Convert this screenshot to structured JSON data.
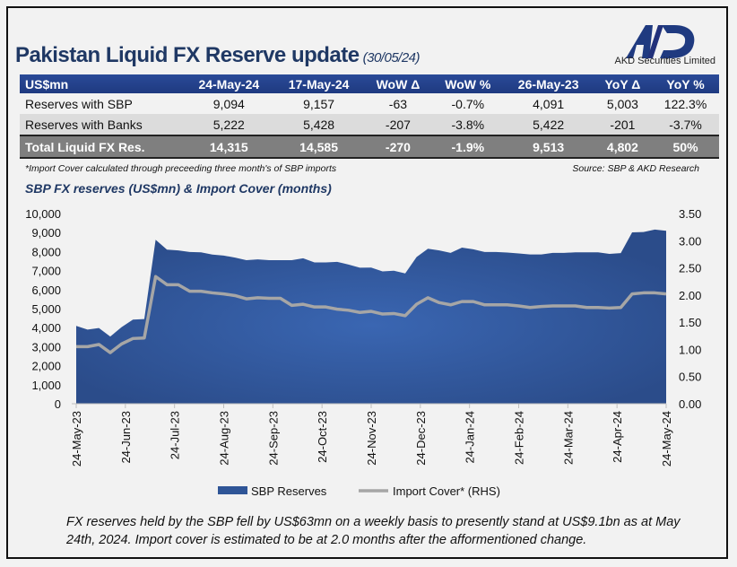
{
  "header": {
    "title": "Pakistan Liquid FX Reserve update",
    "date": "(30/05/24)",
    "logo_text": "AKD",
    "logo_subtitle": "AKD Securities Limited"
  },
  "table": {
    "columns": [
      "US$mn",
      "24-May-24",
      "17-May-24",
      "WoW Δ",
      "WoW %",
      "26-May-23",
      "YoY Δ",
      "YoY %"
    ],
    "rows": [
      [
        "Reserves with SBP",
        "9,094",
        "9,157",
        "-63",
        "-0.7%",
        "4,091",
        "5,003",
        "122.3%"
      ],
      [
        "Reserves with Banks",
        "5,222",
        "5,428",
        "-207",
        "-3.8%",
        "5,422",
        "-201",
        "-3.7%"
      ]
    ],
    "total": [
      "Total Liquid FX Res.",
      "14,315",
      "14,585",
      "-270",
      "-1.9%",
      "9,513",
      "4,802",
      "50%"
    ]
  },
  "notes": {
    "footnote": "*Import Cover calculated through preceeding three month's of SBP imports",
    "source": "Source:  SBP & AKD Research"
  },
  "chart_title": "SBP FX reserves (US$mn) & Import Cover (months)",
  "chart_data": {
    "type": "area+line",
    "title": "SBP FX reserves (US$mn) & Import Cover (months)",
    "x_tick_labels": [
      "24-May-23",
      "24-Jun-23",
      "24-Jul-23",
      "24-Aug-23",
      "24-Sep-23",
      "24-Oct-23",
      "24-Nov-23",
      "24-Dec-23",
      "24-Jan-24",
      "24-Feb-24",
      "24-Mar-24",
      "24-Apr-24",
      "24-May-24"
    ],
    "x_range": [
      "24-May-23",
      "24-May-24"
    ],
    "y_left": {
      "min": 0,
      "max": 10000,
      "ticks": [
        "0",
        "1,000",
        "2,000",
        "3,000",
        "4,000",
        "5,000",
        "6,000",
        "7,000",
        "8,000",
        "9,000",
        "10,000"
      ]
    },
    "y_right": {
      "min": 0,
      "max": 3.5,
      "ticks": [
        "0.00",
        "0.50",
        "1.00",
        "1.50",
        "2.00",
        "2.50",
        "3.00",
        "3.50"
      ]
    },
    "grid": false,
    "legend": "bottom",
    "series": [
      {
        "name": "SBP Reserves",
        "type": "area",
        "axis": "left",
        "color": "#2f5597",
        "values": [
          4091,
          3900,
          3980,
          3530,
          4030,
          4420,
          4450,
          8620,
          8100,
          8060,
          7980,
          7960,
          7840,
          7790,
          7680,
          7550,
          7590,
          7550,
          7550,
          7550,
          7650,
          7430,
          7430,
          7460,
          7320,
          7150,
          7160,
          6960,
          6990,
          6850,
          7710,
          8150,
          8060,
          7930,
          8210,
          8120,
          7980,
          7980,
          7950,
          7900,
          7850,
          7850,
          7930,
          7930,
          7960,
          7960,
          7960,
          7880,
          7920,
          9010,
          9030,
          9157,
          9094
        ]
      },
      {
        "name": "Import Cover* (RHS)",
        "type": "line",
        "axis": "right",
        "color": "#a6a6a6",
        "values": [
          1.05,
          1.05,
          1.09,
          0.94,
          1.1,
          1.2,
          1.21,
          2.34,
          2.19,
          2.19,
          2.07,
          2.07,
          2.04,
          2.02,
          1.99,
          1.93,
          1.95,
          1.94,
          1.94,
          1.81,
          1.83,
          1.78,
          1.78,
          1.74,
          1.72,
          1.68,
          1.7,
          1.65,
          1.66,
          1.62,
          1.83,
          1.95,
          1.86,
          1.82,
          1.88,
          1.88,
          1.82,
          1.82,
          1.82,
          1.8,
          1.77,
          1.79,
          1.8,
          1.8,
          1.8,
          1.77,
          1.77,
          1.76,
          1.77,
          2.02,
          2.04,
          2.04,
          2.02
        ]
      }
    ]
  },
  "caption": "FX reserves held by the SBP fell by US$63mn on a weekly basis to presently stand at US$9.1bn as at May 24th, 2024. Import cover is estimated to be at 2.0 months after the afformentioned change."
}
